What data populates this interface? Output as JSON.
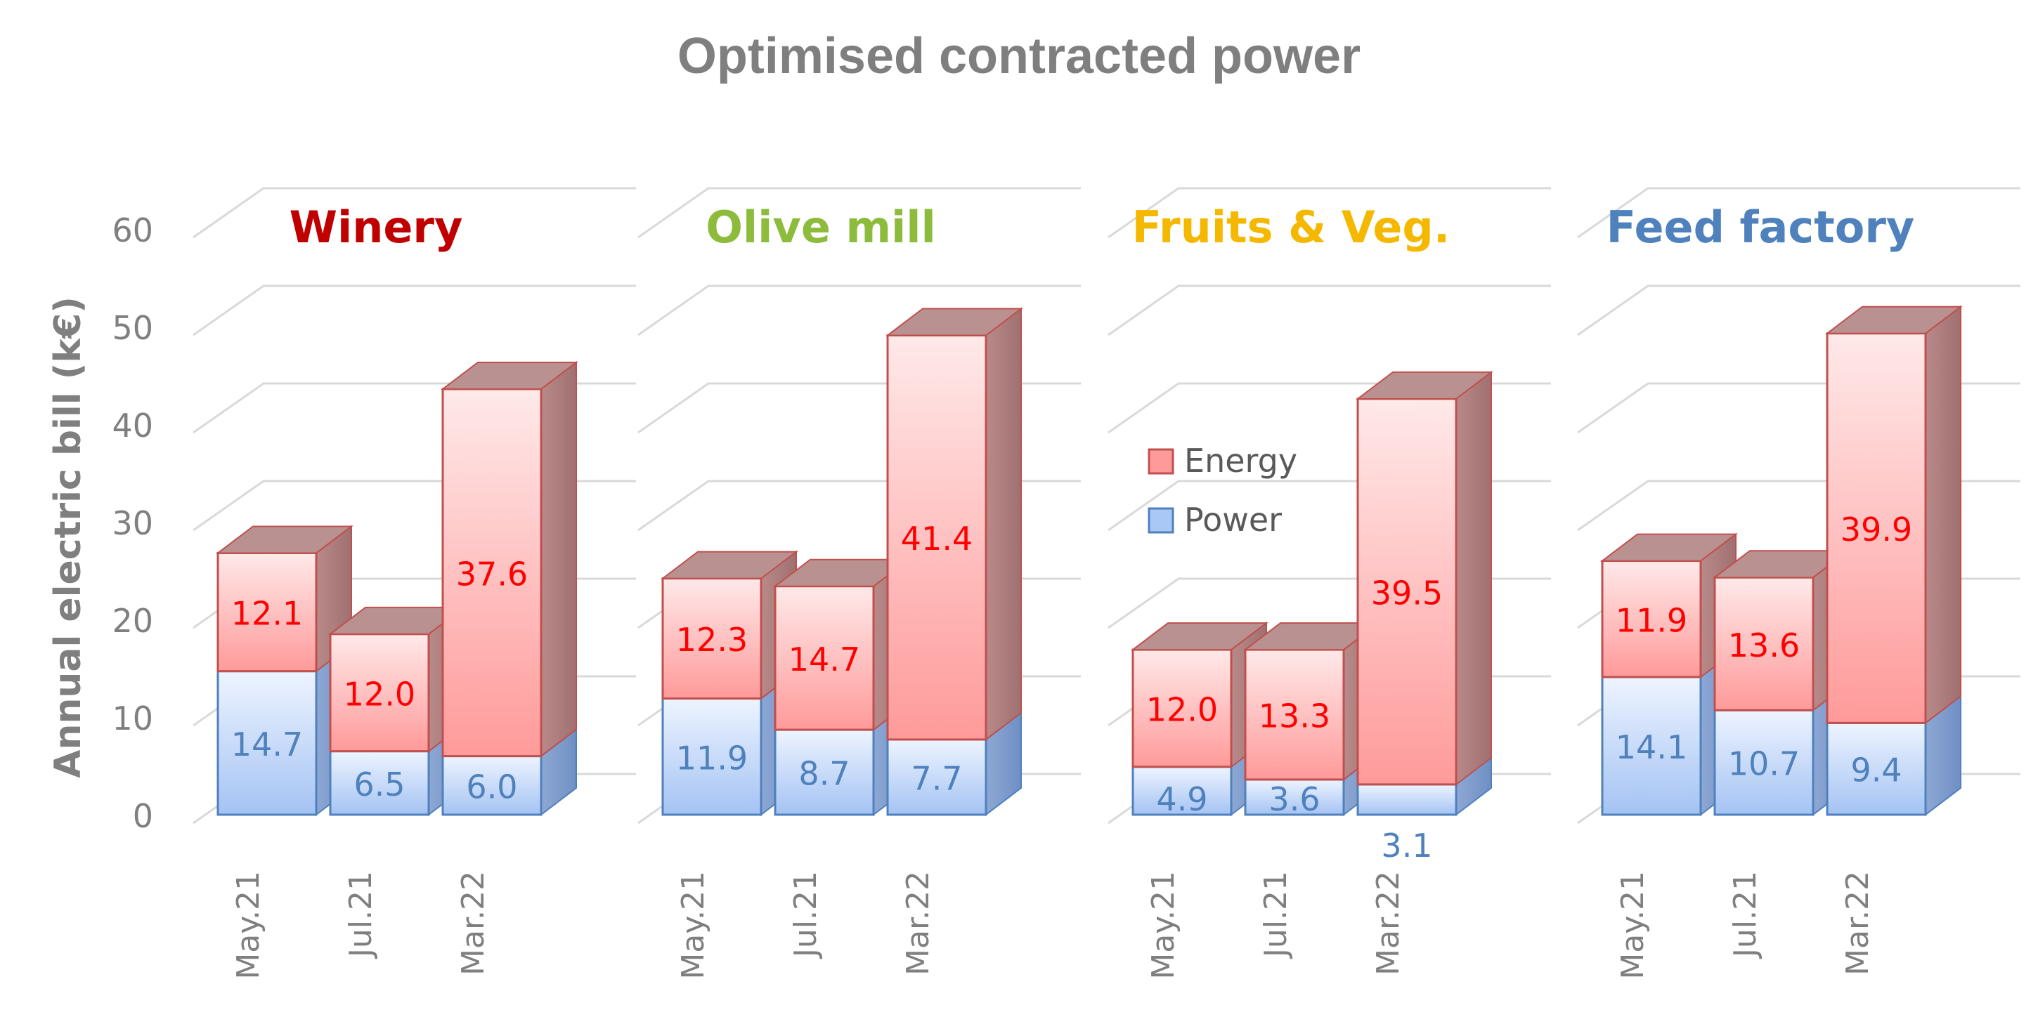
{
  "chart_data": {
    "type": "bar",
    "stacked": true,
    "three_d": true,
    "title": "Optimised contracted power",
    "ylabel": "Annual electric bill (k€)",
    "ylim": [
      0,
      60
    ],
    "yticks": [
      "0",
      "10",
      "20",
      "30",
      "40",
      "50",
      "60"
    ],
    "legend": {
      "placement": "inside third panel, upper-left",
      "entries": [
        {
          "name": "Energy",
          "color": "#ff9a9a",
          "border": "#c0504d"
        },
        {
          "name": "Power",
          "color": "#a9c8f5",
          "border": "#4f81bd"
        }
      ]
    },
    "colors": {
      "energy_top": "#ffe8e8",
      "energy_bottom": "#ff9999",
      "energy_border": "#c0504d",
      "energy_label": "#ff0000",
      "power_top": "#e8f1ff",
      "power_bottom": "#a8c6f4",
      "power_border": "#4f81bd",
      "power_label": "#4f81bd",
      "grid": "#d9d9d9",
      "axis_text": "#7f7f7f"
    },
    "panels": [
      {
        "title": "Winery",
        "title_color": "#c00000",
        "categories": [
          "May.21",
          "Jul.21",
          "Mar.22"
        ],
        "series": [
          {
            "name": "Power",
            "values": [
              14.7,
              6.5,
              6.0
            ],
            "labels": [
              "14.7",
              "6.5",
              "6.0"
            ]
          },
          {
            "name": "Energy",
            "values": [
              12.1,
              12.0,
              37.6
            ],
            "labels": [
              "12.1",
              "12.0",
              "37.6"
            ]
          }
        ]
      },
      {
        "title": "Olive mill",
        "title_color": "#8dbb3c",
        "categories": [
          "May.21",
          "Jul.21",
          "Mar.22"
        ],
        "series": [
          {
            "name": "Power",
            "values": [
              11.9,
              8.7,
              7.7
            ],
            "labels": [
              "11.9",
              "8.7",
              "7.7"
            ]
          },
          {
            "name": "Energy",
            "values": [
              12.3,
              14.7,
              41.4
            ],
            "labels": [
              "12.3",
              "14.7",
              "41.4"
            ]
          }
        ]
      },
      {
        "title": "Fruits & Veg.",
        "title_color": "#f5b800",
        "categories": [
          "May.21",
          "Jul.21",
          "Mar.22"
        ],
        "series": [
          {
            "name": "Power",
            "values": [
              4.9,
              3.6,
              3.1
            ],
            "labels": [
              "4.9",
              "3.6",
              "3.1"
            ]
          },
          {
            "name": "Energy",
            "values": [
              12.0,
              13.3,
              39.5
            ],
            "labels": [
              "12.0",
              "13.3",
              "39.5"
            ]
          }
        ]
      },
      {
        "title": "Feed factory",
        "title_color": "#4f81bd",
        "categories": [
          "May.21",
          "Jul.21",
          "Mar.22"
        ],
        "series": [
          {
            "name": "Power",
            "values": [
              14.1,
              10.7,
              9.4
            ],
            "labels": [
              "14.1",
              "10.7",
              "9.4"
            ]
          },
          {
            "name": "Energy",
            "values": [
              11.9,
              13.6,
              39.9
            ],
            "labels": [
              "11.9",
              "13.6",
              "39.9"
            ]
          }
        ]
      }
    ]
  }
}
